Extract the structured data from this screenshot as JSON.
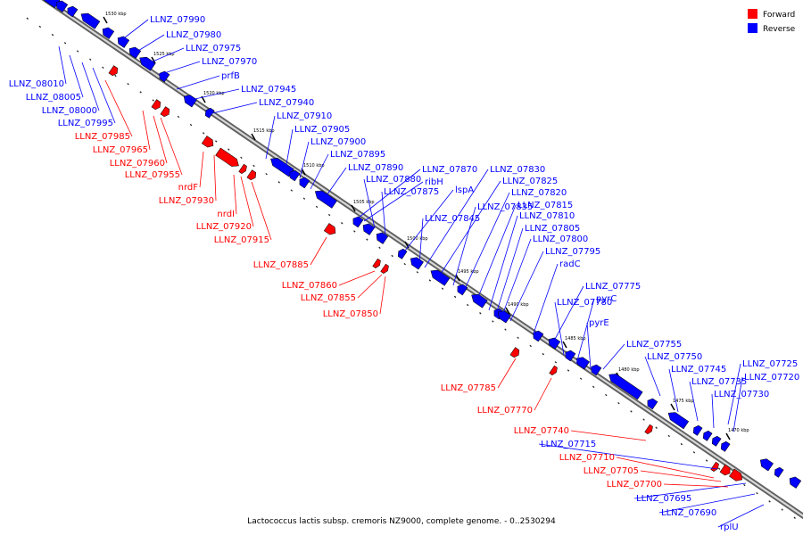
{
  "caption": "Lactococcus lactis subsp. cremoris NZ9000, complete genome. - 0..2530294",
  "legend": [
    {
      "label": "Forward",
      "color": "#ff0000"
    },
    {
      "label": "Reverse",
      "color": "#0000ff"
    }
  ],
  "colors": {
    "forward": "#ff0000",
    "reverse": "#0000ff",
    "backbone": "#808080"
  },
  "kbp_marks": [
    "1530 kbp",
    "1525 kbp",
    "1520 kbp",
    "1515 kbp",
    "1510 kbp",
    "1505 kbp",
    "1500 kbp",
    "1495 kbp",
    "1490 kbp",
    "1485 kbp",
    "1480 kbp",
    "1475 kbp",
    "1470 kbp"
  ],
  "reverse_labels": [
    "LLNZ_07990",
    "LLNZ_07980",
    "LLNZ_07975",
    "LLNZ_07970",
    "prfB",
    "LLNZ_08010",
    "LLNZ_08005",
    "LLNZ_08000",
    "LLNZ_07995",
    "LLNZ_07945",
    "LLNZ_07940",
    "LLNZ_07910",
    "LLNZ_07905",
    "LLNZ_07900",
    "LLNZ_07895",
    "LLNZ_07890",
    "LLNZ_07870",
    "ribH",
    "LLNZ_07880",
    "LLNZ_07875",
    "lspA",
    "LLNZ_07845",
    "LLNZ_07830",
    "LLNZ_07825",
    "LLNZ_07835",
    "LLNZ_07820",
    "LLNZ_07815",
    "LLNZ_07810",
    "LLNZ_07805",
    "LLNZ_07800",
    "LLNZ_07795",
    "radC",
    "LLNZ_07775",
    "LLNZ_07780",
    "pyrC",
    "pyrE",
    "LLNZ_07755",
    "LLNZ_07750",
    "LLNZ_07745",
    "LLNZ_07735",
    "LLNZ_07730",
    "LLNZ_07725",
    "LLNZ_07720",
    "LLNZ_07715",
    "LLNZ_07695",
    "LLNZ_07690",
    "rplU"
  ],
  "forward_labels": [
    "LLNZ_07985",
    "LLNZ_07965",
    "LLNZ_07960",
    "LLNZ_07955",
    "nrdF",
    "LLNZ_07930",
    "nrdI",
    "LLNZ_07920",
    "LLNZ_07915",
    "LLNZ_07885",
    "LLNZ_07860",
    "LLNZ_07855",
    "LLNZ_07850",
    "LLNZ_07785",
    "LLNZ_07770",
    "LLNZ_07740",
    "LLNZ_07710",
    "LLNZ_07705",
    "LLNZ_07700"
  ]
}
